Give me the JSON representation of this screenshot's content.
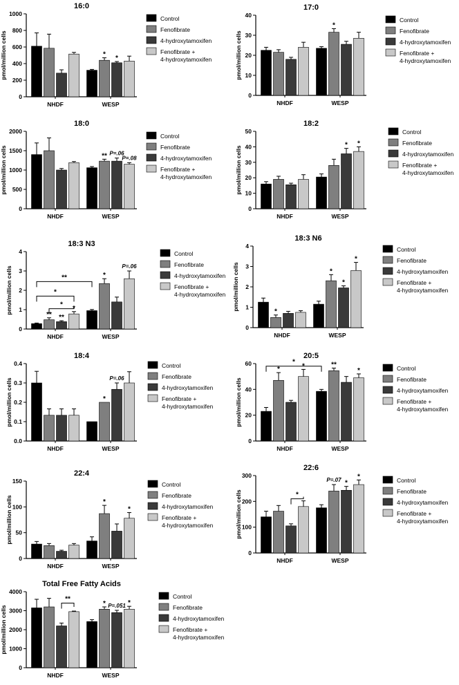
{
  "chart_data": [
    {
      "type": "bar",
      "title": "16:0",
      "ylabel": "pmol/million cells",
      "ylim": [
        0,
        1000
      ],
      "yticks": [
        0,
        200,
        400,
        600,
        800,
        1000
      ],
      "categories": [
        "NHDF",
        "WESP"
      ],
      "series": [
        {
          "name": "Control",
          "values": [
            610,
            320
          ],
          "errors": [
            160,
            10
          ]
        },
        {
          "name": "Fenofibrate",
          "values": [
            585,
            440
          ],
          "errors": [
            170,
            30
          ]
        },
        {
          "name": "4-hydroxytamoxifen",
          "values": [
            285,
            410
          ],
          "errors": [
            40,
            15
          ]
        },
        {
          "name": "Fenofibrate + 4-hydroxytamoxifen",
          "values": [
            515,
            430
          ],
          "errors": [
            20,
            60
          ]
        }
      ],
      "annotations": [
        {
          "text": "*",
          "category": 1,
          "series": 1
        },
        {
          "text": "*",
          "category": 1,
          "series": 2
        }
      ],
      "brackets": []
    },
    {
      "type": "bar",
      "title": "17:0",
      "ylabel": "pmol/million cells",
      "ylim": [
        0,
        40
      ],
      "yticks": [
        0,
        10,
        20,
        30,
        40
      ],
      "categories": [
        "NHDF",
        "WESP"
      ],
      "series": [
        {
          "name": "Control",
          "values": [
            22.5,
            23.5
          ],
          "errors": [
            1.5,
            0.8
          ]
        },
        {
          "name": "Fenofibrate",
          "values": [
            21.5,
            31.5
          ],
          "errors": [
            1.3,
            1.8
          ]
        },
        {
          "name": "4-hydroxytamoxifen",
          "values": [
            18,
            25.5
          ],
          "errors": [
            1,
            1.5
          ]
        },
        {
          "name": "Fenofibrate + 4-hydroxytamoxifen",
          "values": [
            24,
            28.5
          ],
          "errors": [
            2.5,
            3
          ]
        }
      ],
      "annotations": [
        {
          "text": "*",
          "category": 1,
          "series": 1
        }
      ],
      "brackets": []
    },
    {
      "type": "bar",
      "title": "18:0",
      "ylabel": "pmol/million cells",
      "ylim": [
        0,
        2000
      ],
      "yticks": [
        0,
        500,
        1000,
        1500,
        2000
      ],
      "categories": [
        "NHDF",
        "WESP"
      ],
      "series": [
        {
          "name": "Control",
          "values": [
            1400,
            1060
          ],
          "errors": [
            300,
            30
          ]
        },
        {
          "name": "Fenofibrate",
          "values": [
            1500,
            1230
          ],
          "errors": [
            330,
            50
          ]
        },
        {
          "name": "4-hydroxytamoxifen",
          "values": [
            1000,
            1230
          ],
          "errors": [
            40,
            80
          ]
        },
        {
          "name": "Fenofibrate + 4-hydroxytamoxifen",
          "values": [
            1190,
            1150
          ],
          "errors": [
            30,
            40
          ]
        }
      ],
      "annotations": [
        {
          "text": "**",
          "category": 1,
          "series": 1
        },
        {
          "text": "P=.06",
          "category": 1,
          "series": 2
        },
        {
          "text": "P=.08",
          "category": 1,
          "series": 3
        }
      ],
      "brackets": []
    },
    {
      "type": "bar",
      "title": "18:2",
      "ylabel": "pmol/million cells",
      "ylim": [
        0,
        50
      ],
      "yticks": [
        0,
        10,
        20,
        30,
        40,
        50
      ],
      "categories": [
        "NHDF",
        "WESP"
      ],
      "series": [
        {
          "name": "Control",
          "values": [
            16,
            20.5
          ],
          "errors": [
            1.5,
            2
          ]
        },
        {
          "name": "Fenofibrate",
          "values": [
            19,
            28
          ],
          "errors": [
            2,
            4
          ]
        },
        {
          "name": "4-hydroxytamoxifen",
          "values": [
            15.5,
            35.5
          ],
          "errors": [
            1,
            3.5
          ]
        },
        {
          "name": "Fenofibrate + 4-hydroxytamoxifen",
          "values": [
            19,
            37
          ],
          "errors": [
            3,
            3
          ]
        }
      ],
      "annotations": [
        {
          "text": "*",
          "category": 1,
          "series": 2
        },
        {
          "text": "*",
          "category": 1,
          "series": 3
        }
      ],
      "brackets": []
    },
    {
      "type": "bar",
      "title": "18:3 N3",
      "ylabel": "pmol/million cells",
      "ylim": [
        0,
        4
      ],
      "yticks": [
        0,
        1,
        2,
        3,
        4
      ],
      "categories": [
        "NHDF",
        "WESP"
      ],
      "series": [
        {
          "name": "Control",
          "values": [
            0.28,
            0.95
          ],
          "errors": [
            0.03,
            0.06
          ]
        },
        {
          "name": "Fenofibrate",
          "values": [
            0.48,
            2.35
          ],
          "errors": [
            0.1,
            0.25
          ]
        },
        {
          "name": "4-hydroxytamoxifen",
          "values": [
            0.38,
            1.4
          ],
          "errors": [
            0.05,
            0.25
          ]
        },
        {
          "name": "Fenofibrate + 4-hydroxytamoxifen",
          "values": [
            0.78,
            2.6
          ],
          "errors": [
            0.12,
            0.4
          ]
        }
      ],
      "annotations": [
        {
          "text": "**",
          "category": 0,
          "series": 1
        },
        {
          "text": "**",
          "category": 0,
          "series": 2
        },
        {
          "text": "*",
          "category": 0,
          "series": 3
        },
        {
          "text": "*",
          "category": 1,
          "series": 1
        },
        {
          "text": "P=.06",
          "category": 1,
          "series": 3
        }
      ],
      "brackets": [
        {
          "from": [
            0,
            0
          ],
          "to": [
            1,
            0
          ],
          "y": 2.45,
          "text": "**"
        },
        {
          "from": [
            0,
            0
          ],
          "to": [
            0,
            3
          ],
          "y": 1.7,
          "text": "*"
        },
        {
          "from": [
            0,
            1
          ],
          "to": [
            0,
            3
          ],
          "y": 1.05,
          "text": "*"
        }
      ]
    },
    {
      "type": "bar",
      "title": "18:3 N6",
      "ylabel": "pmol/million cells",
      "ylim": [
        0,
        4
      ],
      "yticks": [
        0,
        1,
        2,
        3,
        4
      ],
      "categories": [
        "NHDF",
        "WESP"
      ],
      "series": [
        {
          "name": "Control",
          "values": [
            1.25,
            1.15
          ],
          "errors": [
            0.2,
            0.15
          ]
        },
        {
          "name": "Fenofibrate",
          "values": [
            0.5,
            2.3
          ],
          "errors": [
            0.12,
            0.3
          ]
        },
        {
          "name": "4-hydroxytamoxifen",
          "values": [
            0.7,
            1.95
          ],
          "errors": [
            0.1,
            0.1
          ]
        },
        {
          "name": "Fenofibrate + 4-hydroxytamoxifen",
          "values": [
            0.75,
            2.8
          ],
          "errors": [
            0.08,
            0.4
          ]
        }
      ],
      "annotations": [
        {
          "text": "*",
          "category": 0,
          "series": 1
        },
        {
          "text": "*",
          "category": 1,
          "series": 1
        },
        {
          "text": "*",
          "category": 1,
          "series": 2
        },
        {
          "text": "*",
          "category": 1,
          "series": 3
        }
      ],
      "brackets": []
    },
    {
      "type": "bar",
      "title": "18:4",
      "ylabel": "pmol/million cells",
      "ylim": [
        0,
        0.4
      ],
      "yticks": [
        0.0,
        0.1,
        0.2,
        0.3,
        0.4
      ],
      "categories": [
        "NHDF",
        "WESP"
      ],
      "series": [
        {
          "name": "Control",
          "values": [
            0.3,
            0.1
          ],
          "errors": [
            0.06,
            0
          ]
        },
        {
          "name": "Fenofibrate",
          "values": [
            0.133,
            0.2
          ],
          "errors": [
            0.033,
            0
          ]
        },
        {
          "name": "4-hydroxytamoxifen",
          "values": [
            0.133,
            0.267
          ],
          "errors": [
            0.033,
            0.033
          ]
        },
        {
          "name": "Fenofibrate + 4-hydroxytamoxifen",
          "values": [
            0.133,
            0.3
          ],
          "errors": [
            0.033,
            0.058
          ]
        }
      ],
      "annotations": [
        {
          "text": "*",
          "category": 1,
          "series": 1
        },
        {
          "text": "P=.06",
          "category": 1,
          "series": 2
        }
      ],
      "brackets": []
    },
    {
      "type": "bar",
      "title": "20:5",
      "ylabel": "pmol/million cells",
      "ylim": [
        0,
        60
      ],
      "yticks": [
        0,
        20,
        40,
        60
      ],
      "categories": [
        "NHDF",
        "WESP"
      ],
      "series": [
        {
          "name": "Control",
          "values": [
            23,
            38.5
          ],
          "errors": [
            3,
            1.5
          ]
        },
        {
          "name": "Fenofibrate",
          "values": [
            47,
            54.5
          ],
          "errors": [
            6,
            2
          ]
        },
        {
          "name": "4-hydroxytamoxifen",
          "values": [
            30,
            45.5
          ],
          "errors": [
            1.5,
            4.5
          ]
        },
        {
          "name": "Fenofibrate + 4-hydroxytamoxifen",
          "values": [
            50,
            49
          ],
          "errors": [
            5.5,
            3
          ]
        }
      ],
      "annotations": [
        {
          "text": "*",
          "category": 0,
          "series": 1
        },
        {
          "text": "*",
          "category": 0,
          "series": 3
        },
        {
          "text": "**",
          "category": 1,
          "series": 1
        },
        {
          "text": "*",
          "category": 1,
          "series": 3
        }
      ],
      "brackets": [
        {
          "from": [
            0,
            0
          ],
          "to": [
            1,
            0
          ],
          "y": 58,
          "text": "*"
        }
      ]
    },
    {
      "type": "bar",
      "title": "22:4",
      "ylabel": "pmol/million cells",
      "ylim": [
        0,
        150
      ],
      "yticks": [
        0,
        50,
        100,
        150
      ],
      "categories": [
        "NHDF",
        "WESP"
      ],
      "series": [
        {
          "name": "Control",
          "values": [
            28,
            34
          ],
          "errors": [
            5,
            8
          ]
        },
        {
          "name": "Fenofibrate",
          "values": [
            25,
            87
          ],
          "errors": [
            4,
            16
          ]
        },
        {
          "name": "4-hydroxytamoxifen",
          "values": [
            14,
            53
          ],
          "errors": [
            2,
            14
          ]
        },
        {
          "name": "Fenofibrate + 4-hydroxytamoxifen",
          "values": [
            26,
            78
          ],
          "errors": [
            3,
            11
          ]
        }
      ],
      "annotations": [
        {
          "text": "*",
          "category": 1,
          "series": 1
        },
        {
          "text": "*",
          "category": 1,
          "series": 3
        }
      ],
      "brackets": []
    },
    {
      "type": "bar",
      "title": "22:6",
      "ylabel": "pmol/million cells",
      "ylim": [
        0,
        300
      ],
      "yticks": [
        0,
        100,
        200,
        300
      ],
      "categories": [
        "NHDF",
        "WESP"
      ],
      "series": [
        {
          "name": "Control",
          "values": [
            140,
            175
          ],
          "errors": [
            22,
            12
          ]
        },
        {
          "name": "Fenofibrate",
          "values": [
            162,
            240
          ],
          "errors": [
            22,
            25
          ]
        },
        {
          "name": "4-hydroxytamoxifen",
          "values": [
            105,
            243
          ],
          "errors": [
            8,
            15
          ]
        },
        {
          "name": "Fenofibrate + 4-hydroxytamoxifen",
          "values": [
            180,
            265
          ],
          "errors": [
            22,
            18
          ]
        }
      ],
      "annotations": [
        {
          "text": "P=.07",
          "category": 1,
          "series": 1
        },
        {
          "text": "*",
          "category": 1,
          "series": 2
        },
        {
          "text": "*",
          "category": 1,
          "series": 3
        }
      ],
      "brackets": [
        {
          "from": [
            0,
            2
          ],
          "to": [
            0,
            3
          ],
          "y": 210,
          "text": "*"
        }
      ]
    },
    {
      "type": "bar",
      "title": "Total Free Fatty Acids",
      "ylabel": "pmol/million cells",
      "ylim": [
        0,
        4000
      ],
      "yticks": [
        0,
        1000,
        2000,
        3000,
        4000
      ],
      "categories": [
        "NHDF",
        "WESP"
      ],
      "series": [
        {
          "name": "Control",
          "values": [
            3150,
            2430
          ],
          "errors": [
            450,
            100
          ]
        },
        {
          "name": "Fenofibrate",
          "values": [
            3200,
            3080
          ],
          "errors": [
            450,
            120
          ]
        },
        {
          "name": "4-hydroxytamoxifen",
          "values": [
            2200,
            2900
          ],
          "errors": [
            150,
            120
          ]
        },
        {
          "name": "Fenofibrate + 4-hydroxytamoxifen",
          "values": [
            2950,
            3080
          ],
          "errors": [
            30,
            150
          ]
        }
      ],
      "annotations": [
        {
          "text": "*",
          "category": 1,
          "series": 1
        },
        {
          "text": "P=.051",
          "category": 1,
          "series": 2
        },
        {
          "text": "*",
          "category": 1,
          "series": 3
        }
      ],
      "brackets": [
        {
          "from": [
            0,
            2
          ],
          "to": [
            0,
            3
          ],
          "y": 3400,
          "text": "**"
        }
      ]
    }
  ],
  "legend": {
    "items": [
      {
        "lines": [
          "Control"
        ],
        "color": "#000000"
      },
      {
        "lines": [
          "Fenofibrate"
        ],
        "color": "#7f7f7f"
      },
      {
        "lines": [
          "4-hydroxytamoxifen"
        ],
        "color": "#3a3a3a"
      },
      {
        "lines": [
          "Fenofibrate +",
          "4-hydroxytamoxifen"
        ],
        "color": "#c8c8c8"
      }
    ]
  },
  "colors": [
    "#000000",
    "#7f7f7f",
    "#3a3a3a",
    "#c8c8c8"
  ]
}
